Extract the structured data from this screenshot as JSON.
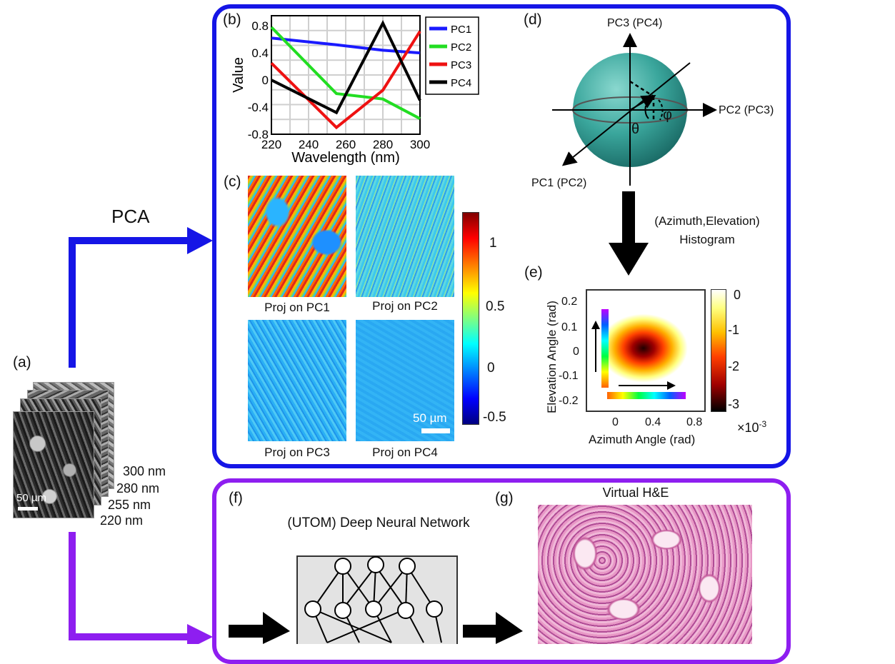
{
  "panel_letters": {
    "a": "(a)",
    "b": "(b)",
    "c": "(c)",
    "d": "(d)",
    "e": "(e)",
    "f": "(f)",
    "g": "(g)"
  },
  "pca_label": "PCA",
  "stack": {
    "wavelengths": [
      "300 nm",
      "280 nm",
      "255 nm",
      "220 nm"
    ],
    "scalebar": "50 µm"
  },
  "chart_data": {
    "type": "line",
    "x": [
      220,
      255,
      280,
      300
    ],
    "series": [
      {
        "name": "PC1",
        "color": "#1a1aff",
        "values": [
          0.62,
          0.52,
          0.44,
          0.4
        ]
      },
      {
        "name": "PC2",
        "color": "#22dd22",
        "values": [
          0.78,
          -0.2,
          -0.28,
          -0.57
        ]
      },
      {
        "name": "PC3",
        "color": "#ee1111",
        "values": [
          0.25,
          -0.7,
          -0.15,
          0.72
        ]
      },
      {
        "name": "PC4",
        "color": "#000000",
        "values": [
          0.0,
          -0.48,
          0.84,
          -0.3
        ]
      }
    ],
    "xlabel": "Wavelength (nm)",
    "ylabel": "Value",
    "xlim": [
      220,
      300
    ],
    "ylim": [
      -0.8,
      0.95
    ],
    "xticks": [
      "220",
      "240",
      "260",
      "280",
      "300"
    ],
    "yticks": [
      "0.8",
      "0.4",
      "0",
      "-0.4",
      "-0.8"
    ],
    "grid": true,
    "legend": "outside-right"
  },
  "projections": {
    "captions": [
      "Proj on PC1",
      "Proj on PC2",
      "Proj on PC3",
      "Proj on PC4"
    ],
    "scalebar": "50 µm",
    "colorbar_ticks": [
      "1",
      "0.5",
      "0",
      "-0.5"
    ]
  },
  "sphere": {
    "axis_top": "PC3 (PC4)",
    "axis_right": "PC2 (PC3)",
    "axis_left": "PC1 (PC2)",
    "theta": "θ",
    "phi": "φ"
  },
  "histogram_arrow_label": [
    "(Azimuth,Elevation)",
    "Histogram"
  ],
  "heatmap": {
    "xlabel": "Azimuth Angle (rad)",
    "ylabel": "Elevation Angle (rad)",
    "xticks": [
      "0",
      "0.4",
      "0.8"
    ],
    "yticks": [
      "0.2",
      "0.1",
      "0",
      "-0.1",
      "-0.2"
    ],
    "colorbar_ticks": [
      "0",
      "-1",
      "-2",
      "-3"
    ],
    "multiplier": "×10",
    "multiplier_exp": "-3"
  },
  "network_title": "(UTOM) Deep Neural Network",
  "he_title": "Virtual H&E"
}
